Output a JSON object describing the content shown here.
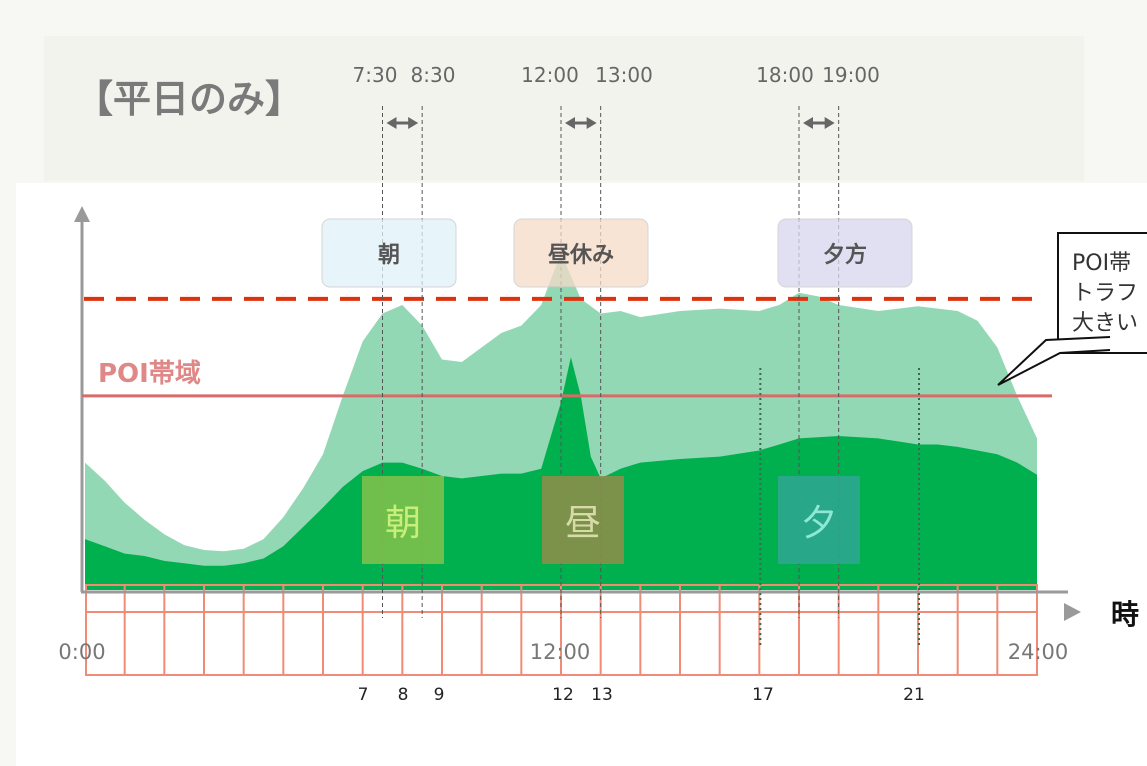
{
  "header": {
    "title": "【平日のみ】",
    "time_labels": [
      "7:30",
      "8:30",
      "12:00",
      "13:00",
      "18:00",
      "19:00"
    ]
  },
  "periods": {
    "top_labels": [
      "朝",
      "昼休み",
      "夕方"
    ],
    "box_labels": [
      "朝",
      "昼",
      "夕"
    ]
  },
  "poi_label": "POI帯域",
  "callout_lines": [
    "POI帯",
    "トラフ",
    "大きい"
  ],
  "axis": {
    "x_unit": "時",
    "tick_labels": [
      "0:00",
      "12:00",
      "24:00"
    ],
    "hour_marks": [
      "7",
      "8",
      "9",
      "12",
      "13",
      "17",
      "21"
    ]
  },
  "colors": {
    "light_area": "#8dd6b1",
    "dark_area": "#00b04f",
    "threshold_line": "#e03010",
    "poi_line": "#d96a6a",
    "grid": "#f08c75",
    "morning_box": "#7cc04a",
    "noon_box": "#8a8f4a",
    "evening_box": "#2ca78e"
  },
  "chart_data": {
    "type": "area",
    "x_unit": "hour",
    "xlim": [
      0,
      24
    ],
    "series": [
      {
        "x": [
          0,
          0.5,
          1,
          1.5,
          2,
          2.5,
          3,
          3.5,
          4,
          4.5,
          5,
          5.5,
          6,
          6.5,
          7,
          7.5,
          8,
          8.5,
          9,
          9.5,
          10,
          10.5,
          11,
          11.5,
          12,
          12.5,
          13,
          13.5,
          14,
          15,
          16,
          17,
          17.5,
          18,
          18.5,
          19,
          20,
          21,
          22,
          22.5,
          23,
          23.5,
          24
        ],
        "values": [
          1.05,
          0.9,
          0.72,
          0.58,
          0.46,
          0.37,
          0.33,
          0.32,
          0.34,
          0.42,
          0.6,
          0.84,
          1.12,
          1.6,
          2.05,
          2.28,
          2.35,
          2.18,
          1.9,
          1.88,
          2.0,
          2.12,
          2.18,
          2.35,
          2.78,
          2.4,
          2.28,
          2.3,
          2.25,
          2.3,
          2.32,
          2.3,
          2.35,
          2.45,
          2.42,
          2.35,
          2.3,
          2.34,
          2.3,
          2.22,
          2.0,
          1.6,
          1.25
        ]
      },
      {
        "x": [
          0,
          0.5,
          1,
          1.5,
          2,
          2.5,
          3,
          3.5,
          4,
          4.5,
          5,
          5.5,
          6,
          6.5,
          7,
          7.5,
          8,
          8.5,
          9,
          9.5,
          10,
          10.5,
          11,
          11.5,
          12,
          12.25,
          12.5,
          12.75,
          13,
          13.5,
          14,
          15,
          16,
          17,
          17.5,
          18,
          19,
          20,
          21,
          21.5,
          22,
          22.5,
          23,
          23.5,
          24
        ],
        "values": [
          0.42,
          0.36,
          0.3,
          0.28,
          0.24,
          0.22,
          0.2,
          0.2,
          0.22,
          0.26,
          0.36,
          0.52,
          0.68,
          0.85,
          0.98,
          1.05,
          1.05,
          1.0,
          0.94,
          0.92,
          0.94,
          0.96,
          0.96,
          1.0,
          1.55,
          1.92,
          1.6,
          1.1,
          0.92,
          1.0,
          1.05,
          1.08,
          1.1,
          1.15,
          1.2,
          1.25,
          1.27,
          1.25,
          1.2,
          1.2,
          1.18,
          1.15,
          1.12,
          1.05,
          0.95
        ]
      }
    ],
    "threshold": 2.4,
    "poi_level": 1.6,
    "ylim": [
      0,
      3.1
    ]
  }
}
